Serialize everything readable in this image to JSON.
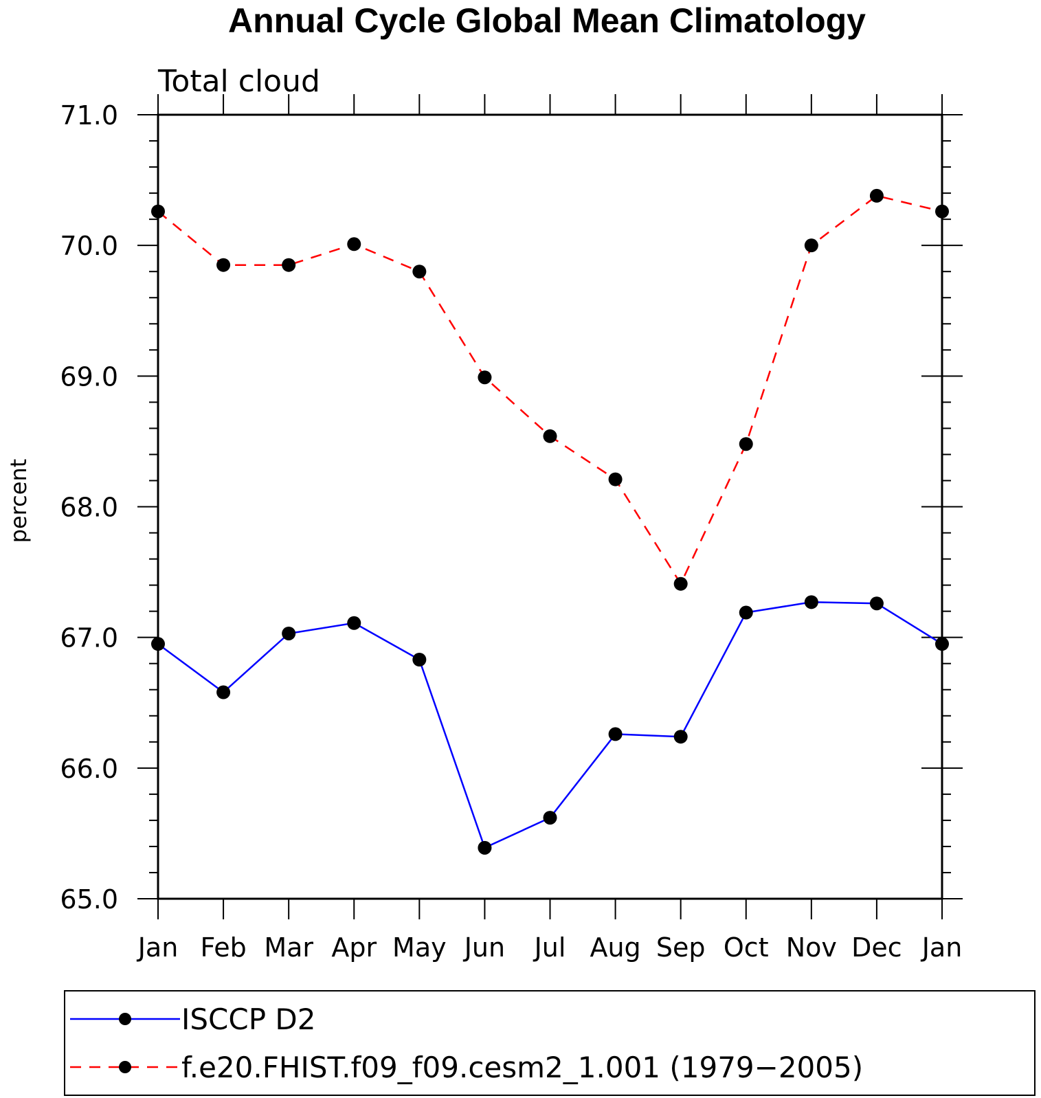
{
  "chart_data": {
    "type": "line",
    "title": "Annual Cycle Global Mean Climatology",
    "subtitle": "Total cloud",
    "ylabel": "percent",
    "xlabel": "",
    "categories": [
      "Jan",
      "Feb",
      "Mar",
      "Apr",
      "May",
      "Jun",
      "Jul",
      "Aug",
      "Sep",
      "Oct",
      "Nov",
      "Dec",
      "Jan"
    ],
    "ylim": [
      65.0,
      71.0
    ],
    "yticks": [
      "65.0",
      "66.0",
      "67.0",
      "68.0",
      "69.0",
      "70.0",
      "71.0"
    ],
    "grid": false,
    "legend_position": "bottom",
    "series": [
      {
        "name": "ISCCP D2",
        "color": "#0000ff",
        "style": "solid",
        "marker": "circle",
        "values": [
          66.95,
          66.58,
          67.03,
          67.11,
          66.83,
          65.39,
          65.62,
          66.26,
          66.24,
          67.19,
          67.27,
          67.26,
          66.95
        ]
      },
      {
        "name": "f.e20.FHIST.f09_f09.cesm2_1.001 (1979−2005)",
        "color": "#ff0000",
        "style": "dashed",
        "marker": "circle",
        "values": [
          70.26,
          69.85,
          69.85,
          70.01,
          69.8,
          68.99,
          68.54,
          68.21,
          67.41,
          68.48,
          70.0,
          70.38,
          70.26
        ]
      }
    ]
  }
}
